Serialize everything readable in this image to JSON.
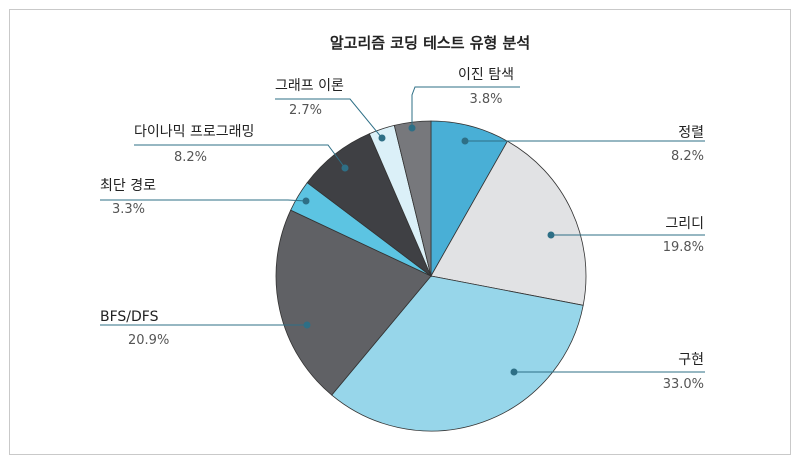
{
  "chart_data": {
    "type": "pie",
    "title": "알고리즘 코딩 테스트 유형 분석",
    "slices": [
      {
        "label": "정렬",
        "value": 8.2,
        "display": "8.2%",
        "color": "#49afd6"
      },
      {
        "label": "그리디",
        "value": 19.8,
        "display": "19.8%",
        "color": "#e1e2e4"
      },
      {
        "label": "구현",
        "value": 33.0,
        "display": "33.0%",
        "color": "#97d6ea"
      },
      {
        "label": "BFS/DFS",
        "value": 20.9,
        "display": "20.9%",
        "color": "#606165"
      },
      {
        "label": "최단 경로",
        "value": 3.3,
        "display": "3.3%",
        "color": "#5cc4e2"
      },
      {
        "label": "다이나믹 프로그래밍",
        "value": 8.2,
        "display": "8.2%",
        "color": "#3f4044"
      },
      {
        "label": "그래프 이론",
        "value": 2.7,
        "display": "2.7%",
        "color": "#dbf0f8"
      },
      {
        "label": "이진 탐색",
        "value": 3.8,
        "display": "3.8%",
        "color": "#77787c"
      }
    ],
    "start": "top",
    "direction": "clockwise",
    "leader_color": "#2e6f86"
  }
}
